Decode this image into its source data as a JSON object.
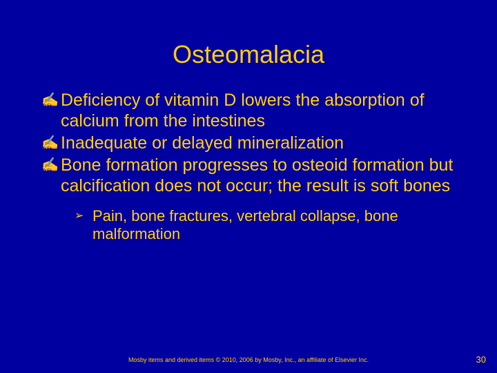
{
  "slide": {
    "background_color": "#0000a0",
    "text_color": "#ffcc00",
    "title": "Osteomalacia",
    "title_fontsize": 36,
    "bullets": [
      {
        "glyph": "✍",
        "text": "Deficiency of vitamin D lowers the absorption of calcium from the intestines"
      },
      {
        "glyph": "✍",
        "text": "Inadequate or delayed mineralization"
      },
      {
        "glyph": "✍",
        "text": "Bone formation progresses to osteoid formation but calcification does not occur; the result is soft bones"
      }
    ],
    "bullet_fontsize": 25,
    "sub_bullets": [
      {
        "glyph": "➢",
        "text": "Pain, bone fractures, vertebral collapse, bone malformation"
      }
    ],
    "sub_fontsize": 22,
    "footer": "Mosby items and derived items © 2010, 2006 by Mosby, Inc., an affiliate of Elsevier Inc.",
    "page_number": "30"
  }
}
